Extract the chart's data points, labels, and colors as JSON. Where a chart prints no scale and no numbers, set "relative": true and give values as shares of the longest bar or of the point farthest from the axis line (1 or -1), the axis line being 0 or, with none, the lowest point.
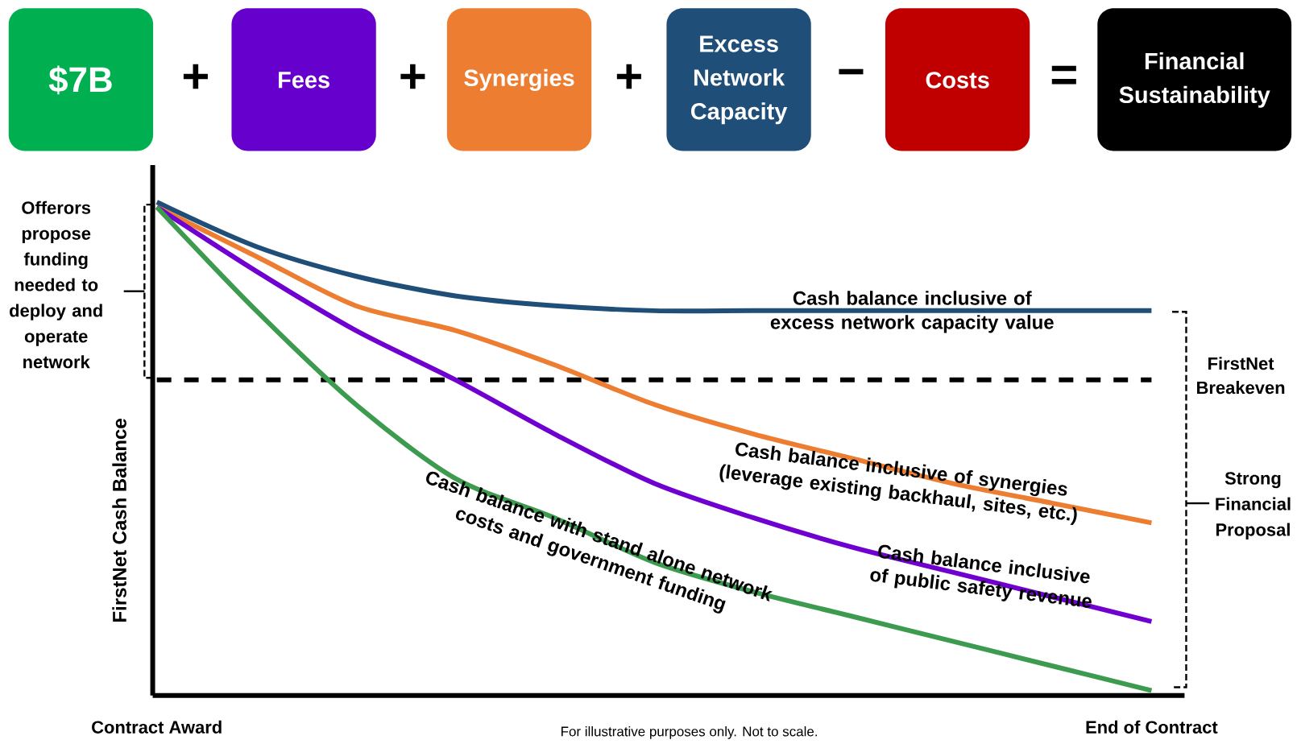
{
  "chart_data": {
    "type": "line",
    "relative": true,
    "categories": [
      "Contract Award",
      null,
      null,
      null,
      null,
      null,
      null,
      null,
      null,
      null,
      "End of Contract"
    ],
    "ylabel": "FirstNet Cash Balance",
    "series": [
      {
        "name": "Cash balance inclusive of excess network capacity value",
        "color": "#1f4e79",
        "values": [
          1,
          0.91,
          0.85,
          0.81,
          0.79,
          0.78,
          0.78,
          0.78,
          0.78,
          0.78,
          0.78
        ]
      },
      {
        "name": "Cash balance inclusive of synergies (leverage existing backhaul, sites, etc.)",
        "color": "#ed7d31",
        "values": [
          0.99,
          0.89,
          0.79,
          0.74,
          0.67,
          0.59,
          0.53,
          0.48,
          0.43,
          0.39,
          0.35
        ]
      },
      {
        "name": "Cash balance inclusive of public safety revenue",
        "color": "#7000d0",
        "values": [
          0.99,
          0.86,
          0.74,
          0.64,
          0.53,
          0.43,
          0.36,
          0.3,
          0.25,
          0.2,
          0.15
        ]
      },
      {
        "name": "Cash balance with stand alone network costs and government funding",
        "color": "#3d9b4f",
        "values": [
          0.99,
          0.78,
          0.59,
          0.44,
          0.36,
          0.27,
          0.21,
          0.16,
          0.11,
          0.06,
          0.01
        ]
      }
    ],
    "ref_lines": [
      {
        "axis": "y",
        "value": 0.64,
        "label": "FirstNet Breakeven",
        "color": "#000000",
        "line_style": "dashed"
      }
    ],
    "annotations": [
      "$7B",
      "+",
      "Fees",
      "+",
      "Synergies",
      "+",
      "Excess Network Capacity",
      "−",
      "Costs",
      "=",
      "Financial Sustainability",
      "Offerors propose funding needed to deploy and operate network",
      "Strong Financial Proposal",
      "For illustrative purposes only. Not to scale."
    ]
  }
}
